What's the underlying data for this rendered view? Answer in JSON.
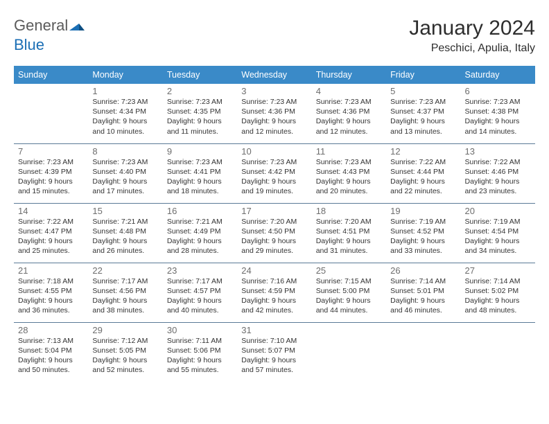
{
  "logo": {
    "general": "General",
    "blue": "Blue"
  },
  "title": "January 2024",
  "location": "Peschici, Apulia, Italy",
  "colors": {
    "header_bg": "#3a8ac8",
    "header_text": "#ffffff",
    "rule": "#5a7a96",
    "daynum": "#6d6d6d",
    "body_text": "#333333",
    "logo_gray": "#5b5b5b",
    "logo_blue": "#1b6fb5"
  },
  "weekdays": [
    "Sunday",
    "Monday",
    "Tuesday",
    "Wednesday",
    "Thursday",
    "Friday",
    "Saturday"
  ],
  "grid_cols": 7,
  "start_offset": 1,
  "days": [
    {
      "n": 1,
      "sunrise": "7:23 AM",
      "sunset": "4:34 PM",
      "daylight": "9 hours and 10 minutes."
    },
    {
      "n": 2,
      "sunrise": "7:23 AM",
      "sunset": "4:35 PM",
      "daylight": "9 hours and 11 minutes."
    },
    {
      "n": 3,
      "sunrise": "7:23 AM",
      "sunset": "4:36 PM",
      "daylight": "9 hours and 12 minutes."
    },
    {
      "n": 4,
      "sunrise": "7:23 AM",
      "sunset": "4:36 PM",
      "daylight": "9 hours and 12 minutes."
    },
    {
      "n": 5,
      "sunrise": "7:23 AM",
      "sunset": "4:37 PM",
      "daylight": "9 hours and 13 minutes."
    },
    {
      "n": 6,
      "sunrise": "7:23 AM",
      "sunset": "4:38 PM",
      "daylight": "9 hours and 14 minutes."
    },
    {
      "n": 7,
      "sunrise": "7:23 AM",
      "sunset": "4:39 PM",
      "daylight": "9 hours and 15 minutes."
    },
    {
      "n": 8,
      "sunrise": "7:23 AM",
      "sunset": "4:40 PM",
      "daylight": "9 hours and 17 minutes."
    },
    {
      "n": 9,
      "sunrise": "7:23 AM",
      "sunset": "4:41 PM",
      "daylight": "9 hours and 18 minutes."
    },
    {
      "n": 10,
      "sunrise": "7:23 AM",
      "sunset": "4:42 PM",
      "daylight": "9 hours and 19 minutes."
    },
    {
      "n": 11,
      "sunrise": "7:23 AM",
      "sunset": "4:43 PM",
      "daylight": "9 hours and 20 minutes."
    },
    {
      "n": 12,
      "sunrise": "7:22 AM",
      "sunset": "4:44 PM",
      "daylight": "9 hours and 22 minutes."
    },
    {
      "n": 13,
      "sunrise": "7:22 AM",
      "sunset": "4:46 PM",
      "daylight": "9 hours and 23 minutes."
    },
    {
      "n": 14,
      "sunrise": "7:22 AM",
      "sunset": "4:47 PM",
      "daylight": "9 hours and 25 minutes."
    },
    {
      "n": 15,
      "sunrise": "7:21 AM",
      "sunset": "4:48 PM",
      "daylight": "9 hours and 26 minutes."
    },
    {
      "n": 16,
      "sunrise": "7:21 AM",
      "sunset": "4:49 PM",
      "daylight": "9 hours and 28 minutes."
    },
    {
      "n": 17,
      "sunrise": "7:20 AM",
      "sunset": "4:50 PM",
      "daylight": "9 hours and 29 minutes."
    },
    {
      "n": 18,
      "sunrise": "7:20 AM",
      "sunset": "4:51 PM",
      "daylight": "9 hours and 31 minutes."
    },
    {
      "n": 19,
      "sunrise": "7:19 AM",
      "sunset": "4:52 PM",
      "daylight": "9 hours and 33 minutes."
    },
    {
      "n": 20,
      "sunrise": "7:19 AM",
      "sunset": "4:54 PM",
      "daylight": "9 hours and 34 minutes."
    },
    {
      "n": 21,
      "sunrise": "7:18 AM",
      "sunset": "4:55 PM",
      "daylight": "9 hours and 36 minutes."
    },
    {
      "n": 22,
      "sunrise": "7:17 AM",
      "sunset": "4:56 PM",
      "daylight": "9 hours and 38 minutes."
    },
    {
      "n": 23,
      "sunrise": "7:17 AM",
      "sunset": "4:57 PM",
      "daylight": "9 hours and 40 minutes."
    },
    {
      "n": 24,
      "sunrise": "7:16 AM",
      "sunset": "4:59 PM",
      "daylight": "9 hours and 42 minutes."
    },
    {
      "n": 25,
      "sunrise": "7:15 AM",
      "sunset": "5:00 PM",
      "daylight": "9 hours and 44 minutes."
    },
    {
      "n": 26,
      "sunrise": "7:14 AM",
      "sunset": "5:01 PM",
      "daylight": "9 hours and 46 minutes."
    },
    {
      "n": 27,
      "sunrise": "7:14 AM",
      "sunset": "5:02 PM",
      "daylight": "9 hours and 48 minutes."
    },
    {
      "n": 28,
      "sunrise": "7:13 AM",
      "sunset": "5:04 PM",
      "daylight": "9 hours and 50 minutes."
    },
    {
      "n": 29,
      "sunrise": "7:12 AM",
      "sunset": "5:05 PM",
      "daylight": "9 hours and 52 minutes."
    },
    {
      "n": 30,
      "sunrise": "7:11 AM",
      "sunset": "5:06 PM",
      "daylight": "9 hours and 55 minutes."
    },
    {
      "n": 31,
      "sunrise": "7:10 AM",
      "sunset": "5:07 PM",
      "daylight": "9 hours and 57 minutes."
    }
  ],
  "labels": {
    "sunrise": "Sunrise:",
    "sunset": "Sunset:",
    "daylight": "Daylight:"
  }
}
